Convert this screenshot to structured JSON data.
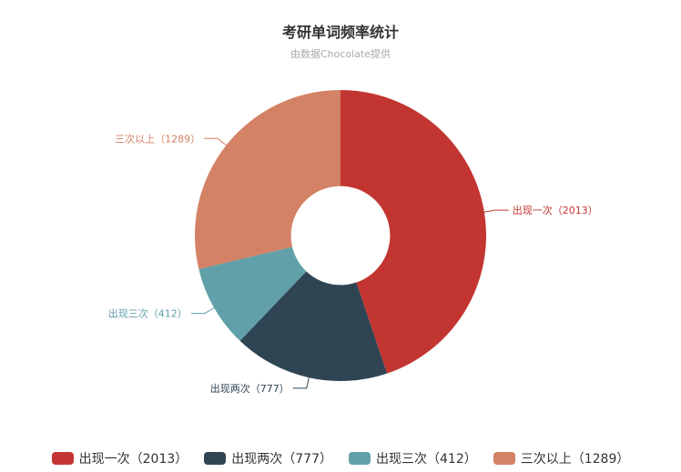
{
  "chart_data": {
    "type": "pie",
    "title": "考研单词频率统计",
    "subtitle": "由数据Chocolate提供",
    "inner_radius_ratio": 0.34,
    "slices": [
      {
        "label": "出现一次",
        "value": 2013,
        "color": "#c23531",
        "display": "出现一次（2013）"
      },
      {
        "label": "出现两次",
        "value": 777,
        "color": "#2f4554",
        "display": "出现两次（777）"
      },
      {
        "label": "出现三次",
        "value": 412,
        "color": "#61a0a8",
        "display": "出现三次（412）"
      },
      {
        "label": "三次以上",
        "value": 1289,
        "color": "#d48265",
        "display": "三次以上（1289）"
      }
    ],
    "legend_position": "bottom"
  }
}
